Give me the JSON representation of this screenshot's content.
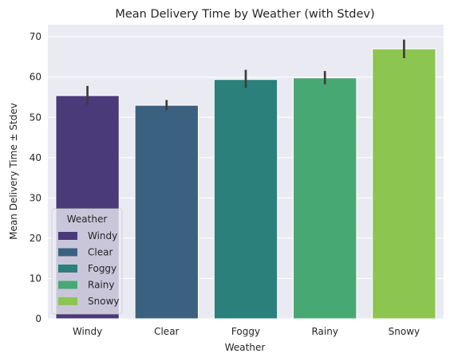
{
  "chart_data": {
    "type": "bar",
    "title": "Mean Delivery Time by Weather (with Stdev)",
    "xlabel": "Weather",
    "ylabel": "Mean Delivery Time ± Stdev",
    "categories": [
      "Windy",
      "Clear",
      "Foggy",
      "Rainy",
      "Snowy"
    ],
    "values": [
      55.4,
      53.0,
      59.4,
      59.8,
      67.0
    ],
    "error_low": [
      53.1,
      51.8,
      57.3,
      58.2,
      64.7
    ],
    "error_high": [
      57.8,
      54.3,
      61.8,
      61.5,
      69.3
    ],
    "colors": [
      "#4a3a7a",
      "#3a6280",
      "#2b807b",
      "#48a874",
      "#8dc551"
    ],
    "yticks": [
      0,
      10,
      20,
      30,
      40,
      50,
      60,
      70
    ],
    "ylim": [
      0,
      73
    ],
    "grid": true,
    "legend": {
      "title": "Weather",
      "position": "lower-left",
      "entries": [
        "Windy",
        "Clear",
        "Foggy",
        "Rainy",
        "Snowy"
      ]
    }
  }
}
